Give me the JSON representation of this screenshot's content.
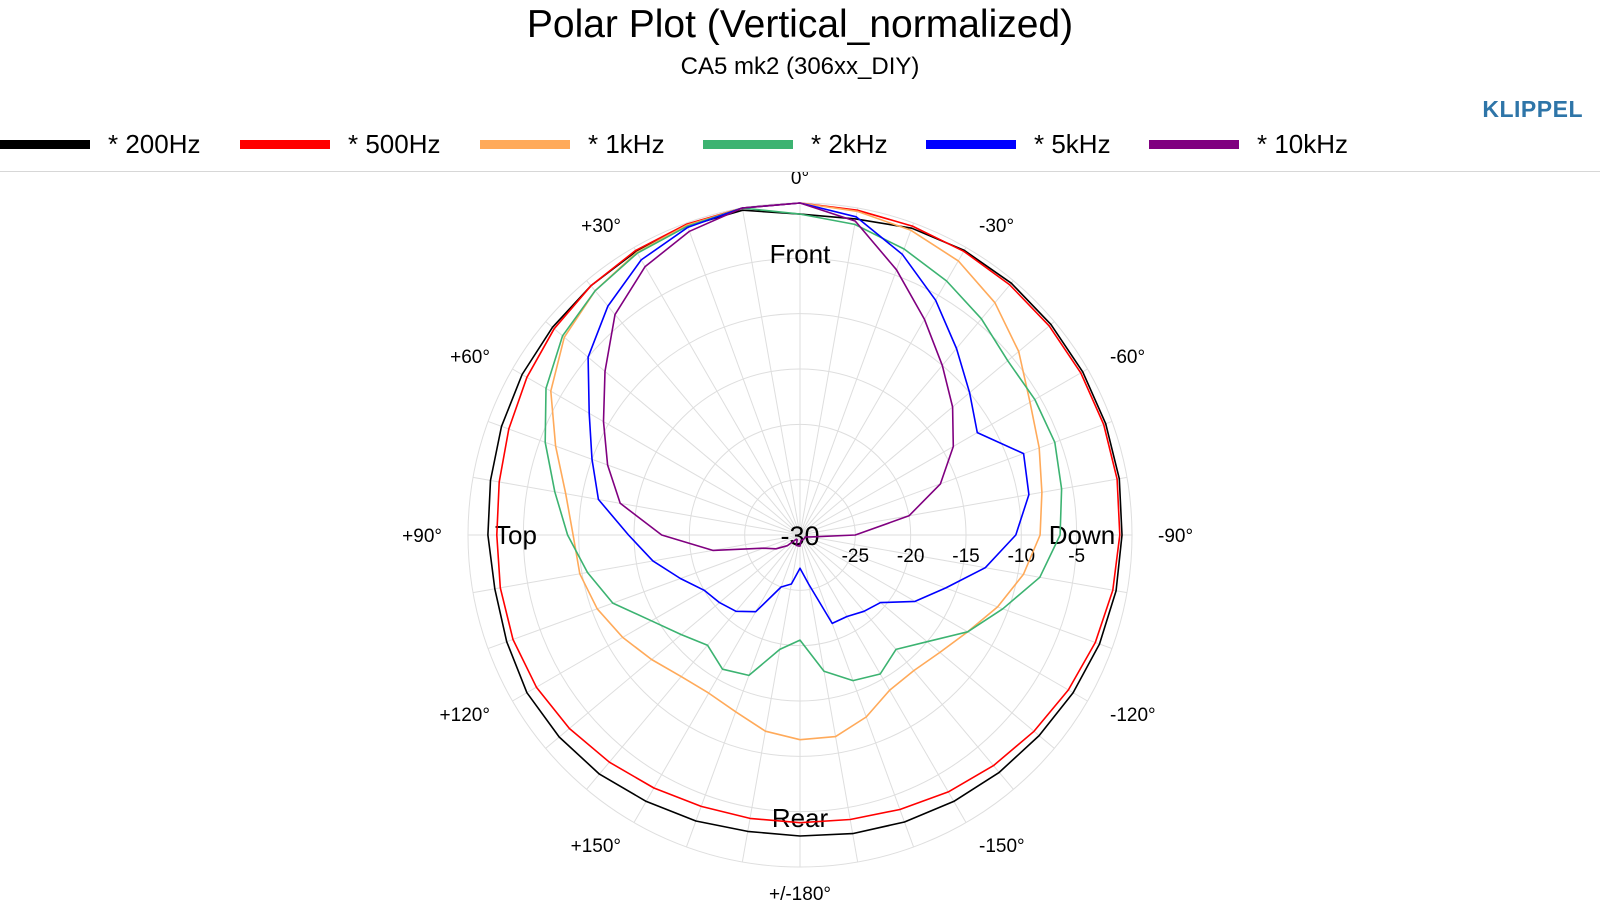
{
  "title": "Polar Plot (Vertical_normalized)",
  "subtitle": "CA5 mk2 (306xx_DIY)",
  "brand": "KLIPPEL",
  "legend": [
    {
      "label": "* 200Hz",
      "color": "#000000"
    },
    {
      "label": "* 500Hz",
      "color": "#ff0000"
    },
    {
      "label": "* 1kHz",
      "color": "#ffaa5a"
    },
    {
      "label": "* 2kHz",
      "color": "#3cb371"
    },
    {
      "label": "* 5kHz",
      "color": "#0000ff"
    },
    {
      "label": "* 10kHz",
      "color": "#800080"
    }
  ],
  "chart_data": {
    "type": "polar",
    "title": "Polar Plot (Vertical_normalized)",
    "subtitle": "CA5 mk2 (306xx_DIY)",
    "radial_range": [
      -30,
      0
    ],
    "radial_ticks": [
      -25,
      -20,
      -15,
      -10,
      -5
    ],
    "center_label": "-30",
    "angle_labels": [
      "0°",
      "-30°",
      "-60°",
      "-90°",
      "-120°",
      "-150°",
      "+/-180°",
      "+150°",
      "+120°",
      "+90°",
      "+60°",
      "+30°"
    ],
    "direction_labels": {
      "front": "Front",
      "down": "Down",
      "rear": "Rear",
      "top": "Top"
    },
    "grid": true,
    "legend_position": "top",
    "angles_deg": [
      0,
      -10,
      -20,
      -30,
      -40,
      -50,
      -60,
      -70,
      -80,
      -90,
      -100,
      -110,
      -120,
      -130,
      -140,
      -150,
      -160,
      -170,
      180,
      170,
      160,
      150,
      140,
      130,
      120,
      110,
      100,
      90,
      80,
      70,
      60,
      50,
      40,
      30,
      20,
      10
    ],
    "series": [
      {
        "name": "* 200Hz",
        "color": "#000000",
        "values": [
          -1.0,
          -1.0,
          -0.5,
          -0.3,
          -0.3,
          -0.4,
          -0.5,
          -0.6,
          -0.7,
          -0.9,
          -1.0,
          -1.2,
          -1.5,
          -1.8,
          -2.0,
          -2.2,
          -2.4,
          -2.6,
          -2.8,
          -2.8,
          -2.5,
          -2.2,
          -1.8,
          -1.6,
          -1.5,
          -1.8,
          -2.0,
          -1.8,
          -1.6,
          -1.3,
          -1.0,
          -0.8,
          -0.6,
          -0.4,
          -0.3,
          -0.2
        ]
      },
      {
        "name": "* 500Hz",
        "color": "#ff0000",
        "values": [
          0.0,
          -0.2,
          -0.3,
          -0.4,
          -0.5,
          -0.6,
          -0.7,
          -0.8,
          -0.9,
          -1.1,
          -1.3,
          -1.6,
          -2.0,
          -2.4,
          -2.8,
          -3.2,
          -3.6,
          -3.9,
          -4.0,
          -4.0,
          -3.9,
          -3.6,
          -3.2,
          -2.8,
          -2.5,
          -2.4,
          -2.5,
          -2.6,
          -2.4,
          -2.0,
          -1.5,
          -1.0,
          -0.6,
          -0.3,
          -0.1,
          0.0
        ]
      },
      {
        "name": "* 1kHz",
        "color": "#ffaa5a",
        "values": [
          0.0,
          -0.3,
          -0.7,
          -1.4,
          -2.6,
          -4.2,
          -6.0,
          -7.0,
          -7.8,
          -8.3,
          -9.5,
          -11.0,
          -12.5,
          -13.5,
          -14.0,
          -13.8,
          -12.5,
          -11.5,
          -11.5,
          -12.0,
          -13.0,
          -13.5,
          -13.3,
          -12.5,
          -11.5,
          -10.5,
          -9.8,
          -9.5,
          -8.5,
          -6.5,
          -4.0,
          -2.2,
          -1.2,
          -0.5,
          -0.2,
          0.0
        ]
      },
      {
        "name": "* 2kHz",
        "color": "#3cb371",
        "values": [
          -1.0,
          -1.5,
          -2.5,
          -3.5,
          -4.5,
          -5.5,
          -5.5,
          -5.5,
          -6.0,
          -6.5,
          -8.0,
          -10.5,
          -12.5,
          -15.0,
          -16.5,
          -15.5,
          -16.0,
          -17.5,
          -20.5,
          -19.5,
          -16.5,
          -16.0,
          -17.0,
          -16.0,
          -14.5,
          -12.0,
          -10.5,
          -9.0,
          -7.5,
          -5.5,
          -3.5,
          -2.0,
          -1.2,
          -0.6,
          -0.3,
          0.0
        ]
      },
      {
        "name": "* 5kHz",
        "color": "#0000ff",
        "values": [
          0.0,
          -0.8,
          -3.0,
          -5.5,
          -8.0,
          -10.0,
          -11.5,
          -8.5,
          -9.0,
          -10.5,
          -13.0,
          -16.0,
          -18.0,
          -20.5,
          -21.0,
          -21.5,
          -21.5,
          -25.5,
          -27.0,
          -25.5,
          -25.0,
          -22.0,
          -21.0,
          -20.5,
          -20.0,
          -18.5,
          -16.5,
          -14.5,
          -11.5,
          -10.0,
          -8.0,
          -5.0,
          -3.0,
          -1.3,
          -0.4,
          0.0
        ]
      },
      {
        "name": "* 10kHz",
        "color": "#800080",
        "values": [
          0.0,
          -1.2,
          -4.5,
          -7.5,
          -10.0,
          -12.0,
          -14.0,
          -16.5,
          -20.0,
          -25.0,
          -29.0,
          -29.5,
          -29.5,
          -29.5,
          -29.5,
          -29.5,
          -29.5,
          -29.5,
          -29.0,
          -29.0,
          -29.0,
          -29.5,
          -29.5,
          -28.5,
          -27.5,
          -26.5,
          -22.0,
          -17.5,
          -13.5,
          -11.5,
          -9.5,
          -7.0,
          -4.0,
          -2.0,
          -0.8,
          0.0
        ]
      }
    ]
  }
}
